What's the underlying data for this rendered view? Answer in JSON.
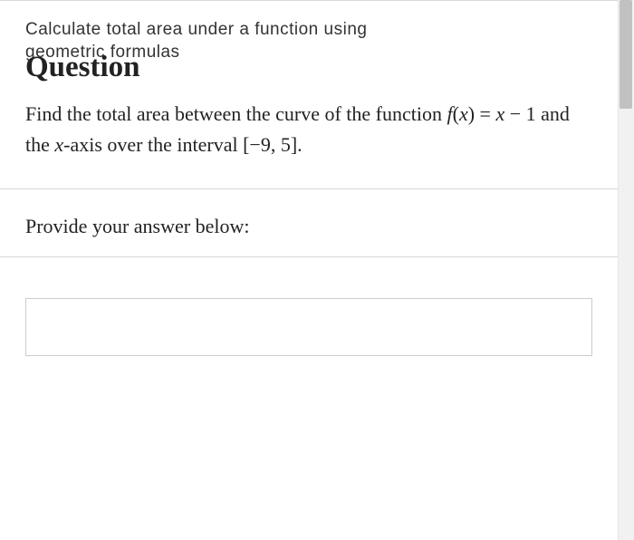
{
  "header": {
    "subtitle_line1": "Calculate total area under a function using",
    "subtitle_line2": "geometric formulas",
    "heading": "Question"
  },
  "question": {
    "text_part1": "Find the total area between the curve of the function ",
    "function_f": "f",
    "function_open": "(",
    "function_x1": "x",
    "function_close": ")",
    "equals": " = ",
    "function_x2": "x",
    "minus": " − ",
    "constant": "1",
    "text_part2": " and the ",
    "axis_x": "x",
    "text_part3": "-axis over the interval ",
    "interval": "[−9, 5]",
    "period": "."
  },
  "answer": {
    "label": "Provide your answer below:",
    "input_value": ""
  },
  "colors": {
    "border": "#d8d8d8",
    "text": "#222222",
    "input_border": "#cccccc",
    "background": "#ffffff"
  }
}
